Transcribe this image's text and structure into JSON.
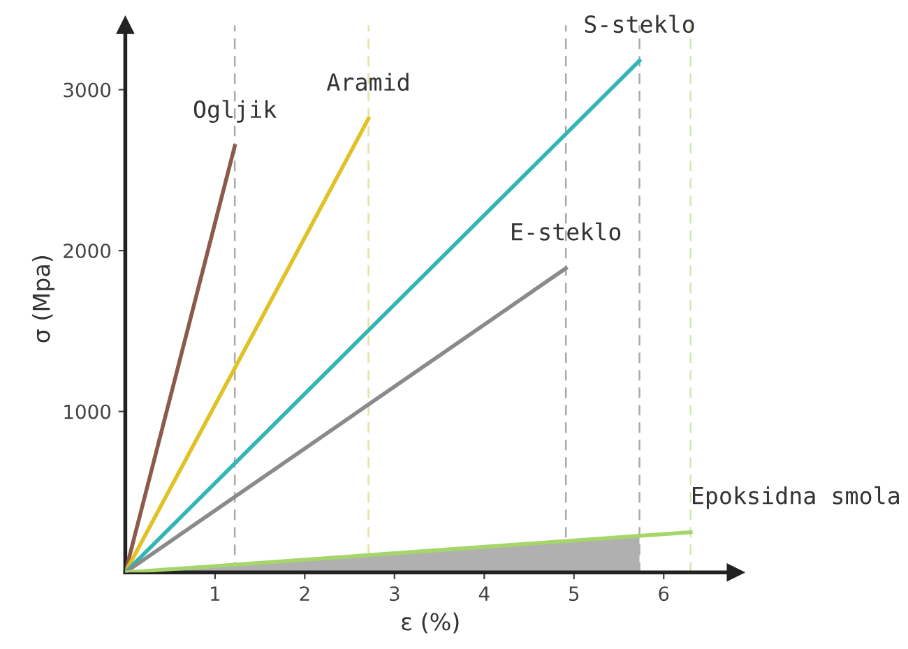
{
  "chart_data": {
    "type": "line",
    "xlabel": "ε (%)",
    "ylabel": "σ (Mpa)",
    "xlim": [
      0,
      6.8
    ],
    "ylim": [
      0,
      3400
    ],
    "xticks": [
      1,
      2,
      3,
      4,
      5,
      6
    ],
    "yticks": [
      1000,
      2000,
      3000
    ],
    "grid": false,
    "legend": false,
    "marker": "none",
    "line_style": "solid",
    "series": [
      {
        "name": "Ogljik",
        "color": "#8b5a4a",
        "x": [
          0,
          1.22
        ],
        "values": [
          0,
          2650
        ]
      },
      {
        "name": "Aramid",
        "color": "#e2c124",
        "x": [
          0,
          2.71
        ],
        "values": [
          0,
          2820
        ]
      },
      {
        "name": "S-steklo",
        "color": "#33b5b5",
        "x": [
          0,
          5.73
        ],
        "values": [
          0,
          3180
        ]
      },
      {
        "name": "E-steklo",
        "color": "#8a8a8a",
        "x": [
          0,
          4.91
        ],
        "values": [
          0,
          1890
        ]
      },
      {
        "type": "area",
        "color": "#b0b0b0",
        "x": [
          0,
          5.73
        ],
        "values": [
          0,
          230
        ]
      },
      {
        "name": "Epoksidna smola",
        "color": "#a6d66a",
        "x": [
          0,
          6.3
        ],
        "values": [
          0,
          250
        ]
      }
    ],
    "ref_lines": [
      {
        "axis": "x",
        "value": 1.22,
        "color": "#aaaaaa",
        "line_style": "dashed"
      },
      {
        "axis": "x",
        "value": 2.71,
        "color": "#e8e0a0",
        "line_style": "dashed"
      },
      {
        "axis": "x",
        "value": 5.73,
        "color": "#aaaaaa",
        "line_style": "dashed"
      },
      {
        "axis": "x",
        "value": 4.91,
        "color": "#aaaaaa",
        "line_style": "dashed"
      },
      {
        "axis": "x",
        "value": 6.3,
        "color": "#cfe8b0",
        "line_style": "dashed"
      }
    ]
  }
}
